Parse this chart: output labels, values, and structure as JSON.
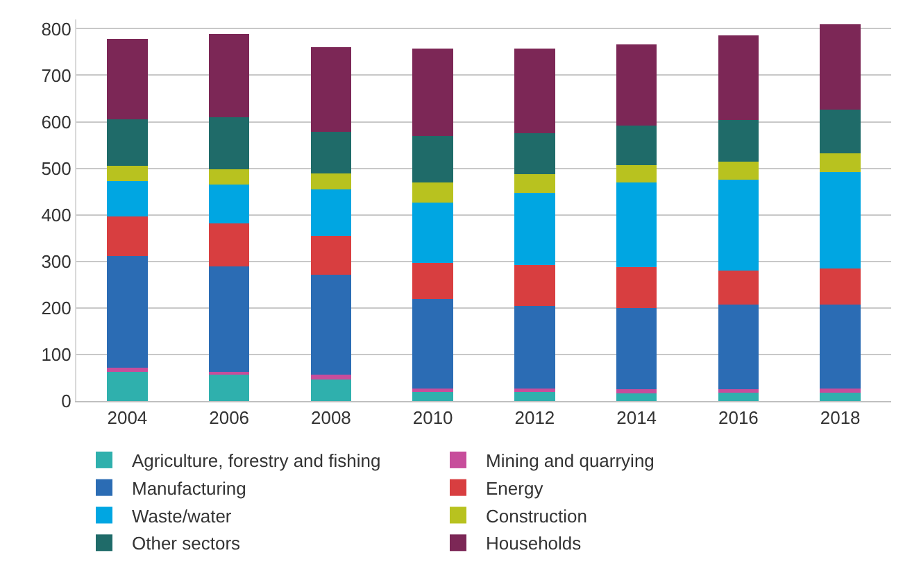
{
  "chart_data": {
    "type": "bar",
    "stacked": true,
    "categories": [
      "2004",
      "2006",
      "2008",
      "2010",
      "2012",
      "2014",
      "2016",
      "2018"
    ],
    "series": [
      {
        "name": "Agriculture, forestry and fishing",
        "color": "#2fb0ad",
        "values": [
          62,
          57,
          46,
          20,
          20,
          17,
          20,
          18
        ]
      },
      {
        "name": "Mining and quarrying",
        "color": "#c74d9b",
        "values": [
          10,
          6,
          10,
          7,
          7,
          8,
          5,
          9
        ]
      },
      {
        "name": "Manufacturing",
        "color": "#2b6cb4",
        "values": [
          239,
          226,
          216,
          192,
          177,
          175,
          182,
          180
        ]
      },
      {
        "name": "Energy",
        "color": "#d83e40",
        "values": [
          85,
          93,
          83,
          77,
          88,
          88,
          74,
          78
        ]
      },
      {
        "name": "Waste/water",
        "color": "#00a6e2",
        "values": [
          77,
          83,
          99,
          130,
          156,
          181,
          195,
          207
        ]
      },
      {
        "name": "Construction",
        "color": "#b8c21f",
        "values": [
          33,
          33,
          35,
          43,
          40,
          38,
          38,
          41
        ]
      },
      {
        "name": "Other sectors",
        "color": "#1f6b69",
        "values": [
          99,
          112,
          89,
          101,
          88,
          85,
          90,
          93
        ]
      },
      {
        "name": "Households",
        "color": "#7c2756",
        "values": [
          174,
          179,
          182,
          187,
          181,
          175,
          182,
          184
        ]
      }
    ],
    "ylim": [
      0,
      820
    ],
    "yticks": [
      0,
      100,
      200,
      300,
      400,
      500,
      600,
      700,
      800
    ],
    "grid": "y",
    "legend": "bottom"
  }
}
